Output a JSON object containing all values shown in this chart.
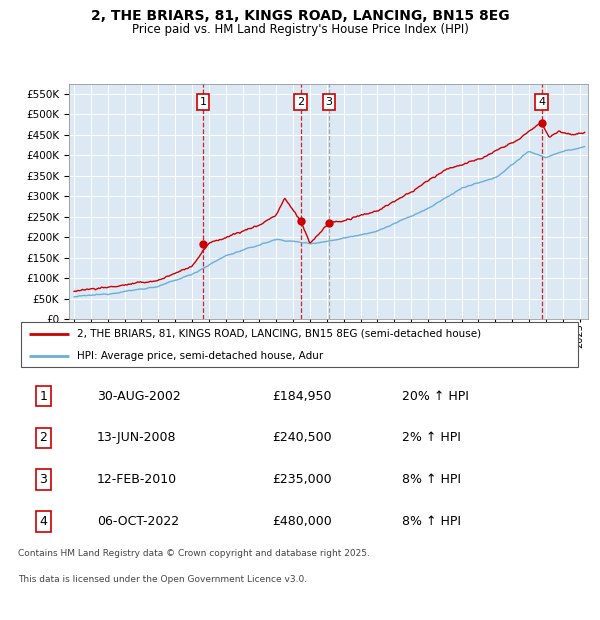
{
  "title": "2, THE BRIARS, 81, KINGS ROAD, LANCING, BN15 8EG",
  "subtitle": "Price paid vs. HM Land Registry's House Price Index (HPI)",
  "legend_line1": "2, THE BRIARS, 81, KINGS ROAD, LANCING, BN15 8EG (semi-detached house)",
  "legend_line2": "HPI: Average price, semi-detached house, Adur",
  "footer_line1": "Contains HM Land Registry data © Crown copyright and database right 2025.",
  "footer_line2": "This data is licensed under the Open Government Licence v3.0.",
  "transactions": [
    {
      "num": 1,
      "date": "30-AUG-2002",
      "price": 184950,
      "year": 2002.66,
      "hpi_pct": "20% ↑ HPI"
    },
    {
      "num": 2,
      "date": "13-JUN-2008",
      "price": 240500,
      "year": 2008.45,
      "hpi_pct": "2% ↑ HPI"
    },
    {
      "num": 3,
      "date": "12-FEB-2010",
      "price": 235000,
      "year": 2010.12,
      "hpi_pct": "8% ↑ HPI"
    },
    {
      "num": 4,
      "date": "06-OCT-2022",
      "price": 480000,
      "year": 2022.76,
      "hpi_pct": "8% ↑ HPI"
    }
  ],
  "hpi_color": "#6baed6",
  "price_color": "#cc0000",
  "dashed_red_color": "#cc0000",
  "dashed_gray_color": "#999999",
  "chart_bg": "#dce9f5",
  "background_color": "#ffffff",
  "grid_color": "#ffffff",
  "ylim": [
    0,
    575000
  ],
  "yticks": [
    0,
    50000,
    100000,
    150000,
    200000,
    250000,
    300000,
    350000,
    400000,
    450000,
    500000,
    550000
  ],
  "xlim_start": 1994.7,
  "xlim_end": 2025.5
}
